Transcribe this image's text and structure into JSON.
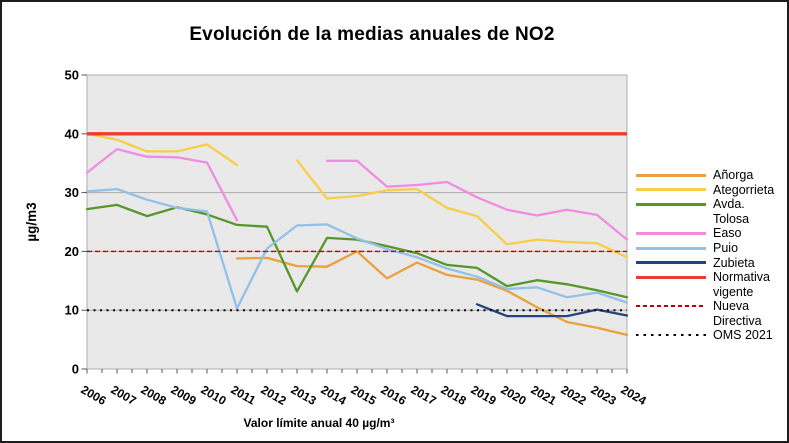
{
  "title": "Evolución de la medias anuales de NO2",
  "caption": "Valor límite anual 40 µg/m³",
  "chart_data": {
    "type": "line",
    "title": "Evolución de la medias anuales de NO2",
    "xlabel": "",
    "ylabel": "µg/m3",
    "ylim": [
      0,
      50
    ],
    "y_ticks": [
      0,
      10,
      20,
      30,
      40,
      50
    ],
    "grid": {
      "horizontal_lines": [
        10,
        20,
        30,
        40
      ],
      "color": "#ababab"
    },
    "legend_position": "right",
    "plot_bg": "#e9e9e9",
    "plot_border": "#adadad",
    "x": [
      2006,
      2007,
      2008,
      2009,
      2010,
      2011,
      2012,
      2013,
      2014,
      2015,
      2016,
      2017,
      2018,
      2019,
      2020,
      2021,
      2022,
      2023,
      2024
    ],
    "series": [
      {
        "name": "Añorga",
        "slug": "anorga",
        "color": "#E9A13B",
        "legend_label": "Añorga",
        "values": [
          null,
          null,
          null,
          null,
          null,
          18.8,
          18.9,
          17.5,
          17.4,
          20,
          15.4,
          18.1,
          16,
          15.2,
          13.3,
          10.5,
          8,
          7,
          5.8
        ]
      },
      {
        "name": "Ategorrieta",
        "slug": "ategorrieta",
        "color": "#F7CE46",
        "legend_label": "Ategorrieta",
        "values": [
          40,
          39,
          37,
          37,
          38.2,
          34.7,
          null,
          35.5,
          29,
          29.4,
          30.4,
          30.6,
          27.4,
          26,
          21.2,
          22,
          21.6,
          21.4,
          19
        ]
      },
      {
        "name": "Avda. Tolosa",
        "slug": "avda-tolosa",
        "color": "#55972C",
        "legend_label": "Avda.\nTolosa",
        "values": [
          27.2,
          27.9,
          26,
          27.5,
          26.3,
          24.5,
          24.2,
          13.2,
          22.3,
          22,
          20.9,
          19.7,
          17.7,
          17.2,
          14.1,
          15.1,
          14.4,
          13.4,
          12.2
        ]
      },
      {
        "name": "Easo",
        "slug": "easo",
        "color": "#F18CE2",
        "legend_label": "Easo",
        "values": [
          33.4,
          37.4,
          36.1,
          36,
          35.1,
          25.3,
          null,
          null,
          35.4,
          35.4,
          31,
          31.3,
          31.8,
          29.2,
          27.1,
          26.1,
          27.1,
          26.2,
          22
        ]
      },
      {
        "name": "Puio",
        "slug": "puio",
        "color": "#92C0E9",
        "legend_label": "Puio",
        "values": [
          30.2,
          30.6,
          28.8,
          27.4,
          26.8,
          10.3,
          20.5,
          24.4,
          24.6,
          22.2,
          20.4,
          19,
          17.1,
          15.7,
          13.6,
          13.9,
          12.2,
          13,
          11.3
        ]
      },
      {
        "name": "Zubieta",
        "slug": "zubieta",
        "color": "#26437B",
        "legend_label": "Zubieta",
        "values": [
          null,
          null,
          null,
          null,
          null,
          null,
          null,
          null,
          null,
          null,
          null,
          null,
          null,
          11,
          9,
          9,
          9,
          10.1,
          9.1
        ]
      }
    ],
    "reference_lines": [
      {
        "name": "Normativa vigente",
        "slug": "normativa-vigente",
        "value": 40,
        "color": "#EC3B33",
        "style": "solid",
        "legend_label": "Normativa\nvigente"
      },
      {
        "name": "Nueva Directiva",
        "slug": "nueva-directiva",
        "value": 20,
        "color": "#C00000",
        "style": "dashed",
        "legend_label": "Nueva\nDirectiva"
      },
      {
        "name": "OMS 2021",
        "slug": "oms-2021",
        "value": 10,
        "color": "#000000",
        "style": "dotted",
        "legend_label": "OMS 2021"
      }
    ]
  }
}
